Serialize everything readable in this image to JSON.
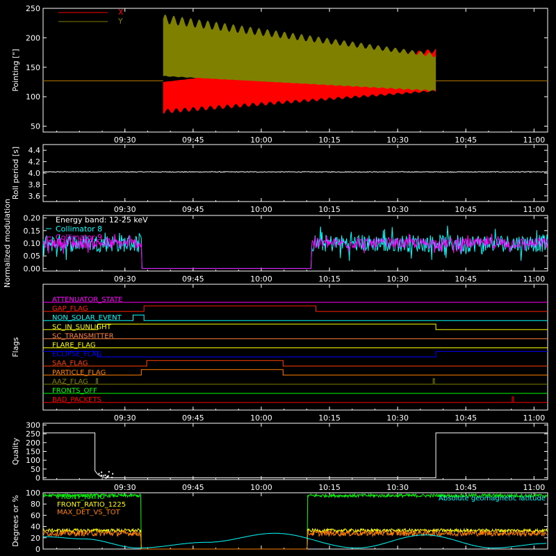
{
  "colors": {
    "background": "#000000",
    "axes": "#ffffff",
    "red": "#ff0000",
    "olive": "#808000",
    "cyan": "#00ffff",
    "magenta": "#ff00ff",
    "white": "#ffffff",
    "green": "#00ff00",
    "yellow": "#ffff00",
    "orange": "#ff8000",
    "blue": "#0000ff",
    "darkred": "#ff2000"
  },
  "chart_data": [
    {
      "type": "area",
      "ylabel": "Pointing [\"]",
      "x_tick_labels": [
        "09:30",
        "09:45",
        "10:00",
        "10:15",
        "10:30",
        "10:45",
        "11:00"
      ],
      "x_ticks_hours": [
        9.5,
        9.75,
        10.0,
        10.25,
        10.5,
        10.75,
        11.0
      ],
      "xlim_hours": [
        9.2,
        11.05
      ],
      "ylim": [
        40,
        250
      ],
      "y_ticks": [
        50,
        100,
        150,
        200,
        250
      ],
      "legend": [
        {
          "name": "X",
          "color": "#ff0000"
        },
        {
          "name": "Y",
          "color": "#808000"
        }
      ],
      "series": [
        {
          "name": "X",
          "color": "#ff0000",
          "before_hours": [
            9.2,
            9.64
          ],
          "before_value": 127,
          "after_hours": [
            10.64,
            11.05
          ],
          "after_value": 127,
          "oscillation": {
            "start_hours": 9.64,
            "end_hours": 10.64,
            "upper_start": 125,
            "upper_end": 178,
            "lower_start": 75,
            "lower_end": 110
          }
        },
        {
          "name": "Y",
          "color": "#808000",
          "before_hours": [
            9.2,
            9.64
          ],
          "before_value": 127,
          "after_hours": [
            10.64,
            11.05
          ],
          "after_value": 127,
          "oscillation": {
            "start_hours": 9.64,
            "end_hours": 10.64,
            "upper_start": 232,
            "upper_end": 170,
            "lower_start": 135,
            "lower_end": 110
          }
        }
      ]
    },
    {
      "type": "line",
      "ylabel": "Roll period [s]",
      "x_tick_labels": [
        "09:30",
        "09:45",
        "10:00",
        "10:15",
        "10:30",
        "10:45",
        "11:00"
      ],
      "xlim_hours": [
        9.2,
        11.05
      ],
      "ylim": [
        3.5,
        4.5
      ],
      "y_ticks": [
        3.6,
        3.8,
        4.0,
        4.2,
        4.4
      ],
      "y_tick_labels": [
        "3.6",
        "3.8",
        "4.0",
        "4.2",
        "4.4"
      ],
      "series": [
        {
          "name": "",
          "color": "#ffffff",
          "x_hours": [
            9.2,
            11.05
          ],
          "values": [
            4.02,
            4.02
          ]
        }
      ]
    },
    {
      "type": "line",
      "ylabel": "Normalized modulation",
      "x_tick_labels": [
        "09:30",
        "09:45",
        "10:00",
        "10:15",
        "10:30",
        "10:45",
        "11:00"
      ],
      "xlim_hours": [
        9.2,
        11.05
      ],
      "ylim": [
        -0.01,
        0.21
      ],
      "y_ticks": [
        0.0,
        0.05,
        0.1,
        0.15,
        0.2
      ],
      "y_tick_labels": [
        "0.00",
        "0.05",
        "0.10",
        "0.15",
        "0.20"
      ],
      "annotation": "Energy band: 12-25 keV",
      "legend": [
        {
          "name": "Collimator 8",
          "color": "#00ffff"
        },
        {
          "name": "Collimator 9",
          "color": "#ff00ff"
        }
      ],
      "gap_hours": [
        9.56,
        10.18
      ],
      "series": [
        {
          "name": "Collimator 8",
          "color": "#00ffff",
          "mean": 0.1,
          "spread": 0.05,
          "gap_value": 0.0
        },
        {
          "name": "Collimator 9",
          "color": "#ff00ff",
          "mean": 0.1,
          "spread": 0.03,
          "gap_value": 0.0
        }
      ]
    },
    {
      "type": "line",
      "ylabel": "Flags",
      "x_tick_labels": [
        "09:30",
        "09:45",
        "10:00",
        "10:15",
        "10:30",
        "10:45",
        "11:00"
      ],
      "xlim_hours": [
        9.2,
        11.05
      ],
      "flags": [
        {
          "name": "ATTENUATOR_STATE",
          "color": "#ff00ff",
          "on": []
        },
        {
          "name": "GAP_FLAG",
          "color": "#ff2000",
          "on": [
            [
              9.57,
              10.2
            ]
          ]
        },
        {
          "name": "NON_SOLAR_EVENT",
          "color": "#00ffff",
          "on": [
            [
              9.53,
              9.57
            ]
          ]
        },
        {
          "name": "SC_IN_SUNLIGHT",
          "color": "#ffff00",
          "on": [
            [
              9.4,
              10.64
            ]
          ]
        },
        {
          "name": "SC_TRANSMITTER",
          "color": "#ff8040",
          "on": []
        },
        {
          "name": "FLARE_FLAG",
          "color": "#ffff00",
          "on": []
        },
        {
          "name": "ECLIPSE_FLAG",
          "color": "#0000ff",
          "on": [
            [
              9.2,
              9.4
            ],
            [
              10.64,
              11.05
            ]
          ]
        },
        {
          "name": "SAA_FLAG",
          "color": "#ff4000",
          "on": [
            [
              9.58,
              10.08
            ]
          ]
        },
        {
          "name": "PARTICLE_FLAG",
          "color": "#ff8000",
          "on": [
            [
              9.56,
              10.08
            ]
          ]
        },
        {
          "name": "AAZ_FLAG",
          "color": "#808000",
          "on": [
            [
              9.395,
              9.4
            ],
            [
              10.63,
              10.635
            ]
          ]
        },
        {
          "name": "FRONTS_OFF",
          "color": "#00ff00",
          "on": []
        },
        {
          "name": "BAD_PACKETS",
          "color": "#ff0000",
          "on": [
            [
              10.92,
              10.925
            ]
          ]
        }
      ]
    },
    {
      "type": "line",
      "ylabel": "Quality",
      "x_tick_labels": [
        "09:30",
        "09:45",
        "10:00",
        "10:15",
        "10:30",
        "10:45",
        "11:00"
      ],
      "xlim_hours": [
        9.2,
        11.05
      ],
      "ylim": [
        -10,
        310
      ],
      "y_ticks": [
        0,
        50,
        100,
        150,
        200,
        250,
        300
      ],
      "series": [
        {
          "name": "",
          "color": "#ffffff",
          "x_hours": [
            9.2,
            9.39,
            9.39,
            9.4,
            9.41,
            9.42,
            9.45,
            9.46,
            10.64,
            10.64,
            11.05
          ],
          "values": [
            255,
            255,
            40,
            20,
            10,
            2,
            0,
            0,
            0,
            255,
            255
          ]
        }
      ]
    },
    {
      "type": "line",
      "ylabel": "Degrees or %",
      "xlim_hours": [
        9.2,
        11.05
      ],
      "ylim": [
        0,
        100
      ],
      "y_ticks": [
        0,
        20,
        40,
        60,
        80,
        100
      ],
      "legend": [
        {
          "name": "FRONT_RATIO",
          "color": "#00ff00"
        },
        {
          "name": "FRONT_RATIO_1225",
          "color": "#ffff00"
        },
        {
          "name": "MAX_DET_VS_TOT",
          "color": "#ff8000"
        },
        {
          "name": "Absolute geomagnetic latitude",
          "color": "#00ffff"
        }
      ],
      "gap_hours": [
        9.56,
        10.17
      ],
      "series": [
        {
          "name": "FRONT_RATIO",
          "color": "#00ff00",
          "level": 95,
          "noise": 3
        },
        {
          "name": "FRONT_RATIO_1225",
          "color": "#ffff00",
          "level": 33,
          "noise": 3
        },
        {
          "name": "MAX_DET_VS_TOT",
          "color": "#ff8000",
          "level": 28,
          "noise": 5
        },
        {
          "name": "Absolute geomagnetic latitude",
          "color": "#00ffff",
          "x_hours": [
            9.2,
            9.35,
            9.55,
            9.8,
            10.05,
            10.35,
            10.6,
            10.85,
            11.05
          ],
          "values": [
            22,
            18,
            2,
            12,
            28,
            2,
            25,
            2,
            10
          ]
        }
      ]
    }
  ]
}
